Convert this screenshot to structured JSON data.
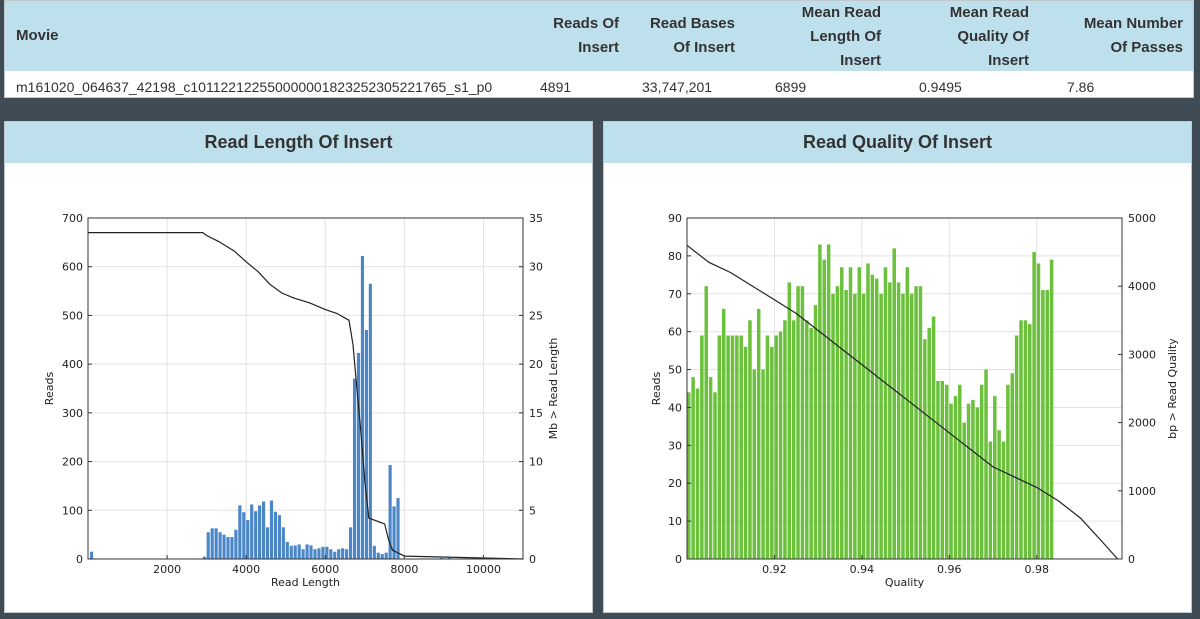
{
  "table": {
    "headers": [
      "Movie",
      "Reads Of\nInsert",
      "Read Bases\nOf Insert",
      "Mean Read\nLength Of\nInsert",
      "Mean Read\nQuality Of\nInsert",
      "Mean Number\nOf Passes"
    ],
    "row": [
      "m161020_064637_42198_c101122122550000001823252305221765_s1_p0",
      "4891",
      "33,747,201",
      "6899",
      "0.9495",
      "7.86"
    ]
  },
  "colors": {
    "header_bg": "#bde0ec",
    "length_bar": "#4a86c8",
    "quality_bar": "#6cc13c",
    "line": "#222222"
  },
  "chart_data": [
    {
      "type": "bar",
      "title": "Read Length Of Insert",
      "xlabel": "Read Length",
      "ylabel": "Reads",
      "y2label": "Mb > Read Length",
      "xlim": [
        0,
        11000
      ],
      "ylim": [
        0,
        700
      ],
      "y2lim": [
        0,
        35
      ],
      "xticks": [
        2000,
        4000,
        6000,
        8000,
        10000
      ],
      "yticks": [
        0,
        100,
        200,
        300,
        400,
        500,
        600,
        700
      ],
      "y2ticks": [
        0,
        5,
        10,
        15,
        20,
        25,
        30,
        35
      ],
      "grid": true,
      "bins": [
        [
          50,
          15
        ],
        [
          2900,
          5
        ],
        [
          3000,
          55
        ],
        [
          3100,
          63
        ],
        [
          3200,
          63
        ],
        [
          3300,
          55
        ],
        [
          3400,
          50
        ],
        [
          3500,
          45
        ],
        [
          3600,
          45
        ],
        [
          3700,
          60
        ],
        [
          3800,
          110
        ],
        [
          3900,
          96
        ],
        [
          4000,
          80
        ],
        [
          4100,
          112
        ],
        [
          4200,
          98
        ],
        [
          4300,
          110
        ],
        [
          4400,
          118
        ],
        [
          4500,
          65
        ],
        [
          4600,
          120
        ],
        [
          4700,
          97
        ],
        [
          4800,
          90
        ],
        [
          4900,
          65
        ],
        [
          5000,
          35
        ],
        [
          5100,
          27
        ],
        [
          5200,
          28
        ],
        [
          5300,
          30
        ],
        [
          5400,
          20
        ],
        [
          5500,
          30
        ],
        [
          5600,
          28
        ],
        [
          5700,
          20
        ],
        [
          5800,
          22
        ],
        [
          5900,
          25
        ],
        [
          6000,
          25
        ],
        [
          6100,
          20
        ],
        [
          6200,
          15
        ],
        [
          6300,
          20
        ],
        [
          6400,
          22
        ],
        [
          6500,
          20
        ],
        [
          6600,
          65
        ],
        [
          6700,
          370
        ],
        [
          6800,
          423
        ],
        [
          6900,
          622
        ],
        [
          7000,
          470
        ],
        [
          7100,
          565
        ],
        [
          7200,
          27
        ],
        [
          7300,
          13
        ],
        [
          7400,
          10
        ],
        [
          7500,
          13
        ],
        [
          7600,
          193
        ],
        [
          7700,
          108
        ],
        [
          7800,
          125
        ],
        [
          8900,
          2
        ],
        [
          9100,
          2
        ],
        [
          9300,
          1
        ]
      ],
      "bar_width": 80,
      "curve": [
        [
          0,
          33.5
        ],
        [
          2900,
          33.5
        ],
        [
          3000,
          33.2
        ],
        [
          3300,
          32.6
        ],
        [
          3700,
          31.6
        ],
        [
          4000,
          30.5
        ],
        [
          4300,
          29.5
        ],
        [
          4600,
          28.2
        ],
        [
          4900,
          27.3
        ],
        [
          5200,
          26.8
        ],
        [
          5600,
          26.3
        ],
        [
          6000,
          25.6
        ],
        [
          6300,
          25.2
        ],
        [
          6600,
          24.5
        ],
        [
          6700,
          22.0
        ],
        [
          6800,
          17.5
        ],
        [
          6900,
          13.0
        ],
        [
          7000,
          8.0
        ],
        [
          7100,
          4.2
        ],
        [
          7500,
          3.6
        ],
        [
          7600,
          2.0
        ],
        [
          7700,
          0.9
        ],
        [
          8000,
          0.3
        ],
        [
          11000,
          0
        ]
      ]
    },
    {
      "type": "bar",
      "title": "Read Quality Of Insert",
      "xlabel": "Quality",
      "ylabel": "Reads",
      "y2label": "bp > Read Quality",
      "xlim": [
        0.9,
        0.9995
      ],
      "ylim": [
        0,
        90
      ],
      "y2lim": [
        0,
        5000
      ],
      "xticks": [
        0.92,
        0.94,
        0.96,
        0.98
      ],
      "yticks": [
        0,
        10,
        20,
        30,
        40,
        50,
        60,
        70,
        80,
        90
      ],
      "y2ticks": [
        0,
        1000,
        2000,
        3000,
        4000,
        5000
      ],
      "grid": true,
      "bar_start": 0.9,
      "bar_step": 0.001,
      "bar_width": 0.0008,
      "values": [
        44,
        48,
        45,
        59,
        72,
        48,
        44,
        59,
        66,
        59,
        59,
        59,
        59,
        56,
        63,
        50,
        66,
        50,
        59,
        56,
        59,
        60,
        63,
        73,
        63,
        72,
        72,
        63,
        61,
        67,
        83,
        79,
        83,
        70,
        72,
        77,
        71,
        77,
        70,
        77,
        70,
        78,
        75,
        74,
        70,
        77,
        73,
        82,
        73,
        70,
        77,
        70,
        72,
        72,
        58,
        61,
        64,
        47,
        47,
        46,
        41,
        43,
        46,
        36,
        41,
        42,
        40,
        46,
        50,
        31,
        43,
        34,
        31,
        46,
        49,
        59,
        63,
        63,
        62,
        81,
        78,
        71,
        71,
        79
      ],
      "curve": [
        [
          0.9,
          4600
        ],
        [
          0.902,
          4500
        ],
        [
          0.905,
          4350
        ],
        [
          0.91,
          4200
        ],
        [
          0.915,
          4000
        ],
        [
          0.92,
          3800
        ],
        [
          0.925,
          3600
        ],
        [
          0.93,
          3350
        ],
        [
          0.935,
          3100
        ],
        [
          0.94,
          2850
        ],
        [
          0.945,
          2600
        ],
        [
          0.95,
          2350
        ],
        [
          0.955,
          2100
        ],
        [
          0.96,
          1850
        ],
        [
          0.965,
          1600
        ],
        [
          0.97,
          1350
        ],
        [
          0.975,
          1200
        ],
        [
          0.98,
          1050
        ],
        [
          0.985,
          850
        ],
        [
          0.99,
          600
        ],
        [
          0.995,
          250
        ],
        [
          0.9985,
          0
        ]
      ]
    }
  ]
}
